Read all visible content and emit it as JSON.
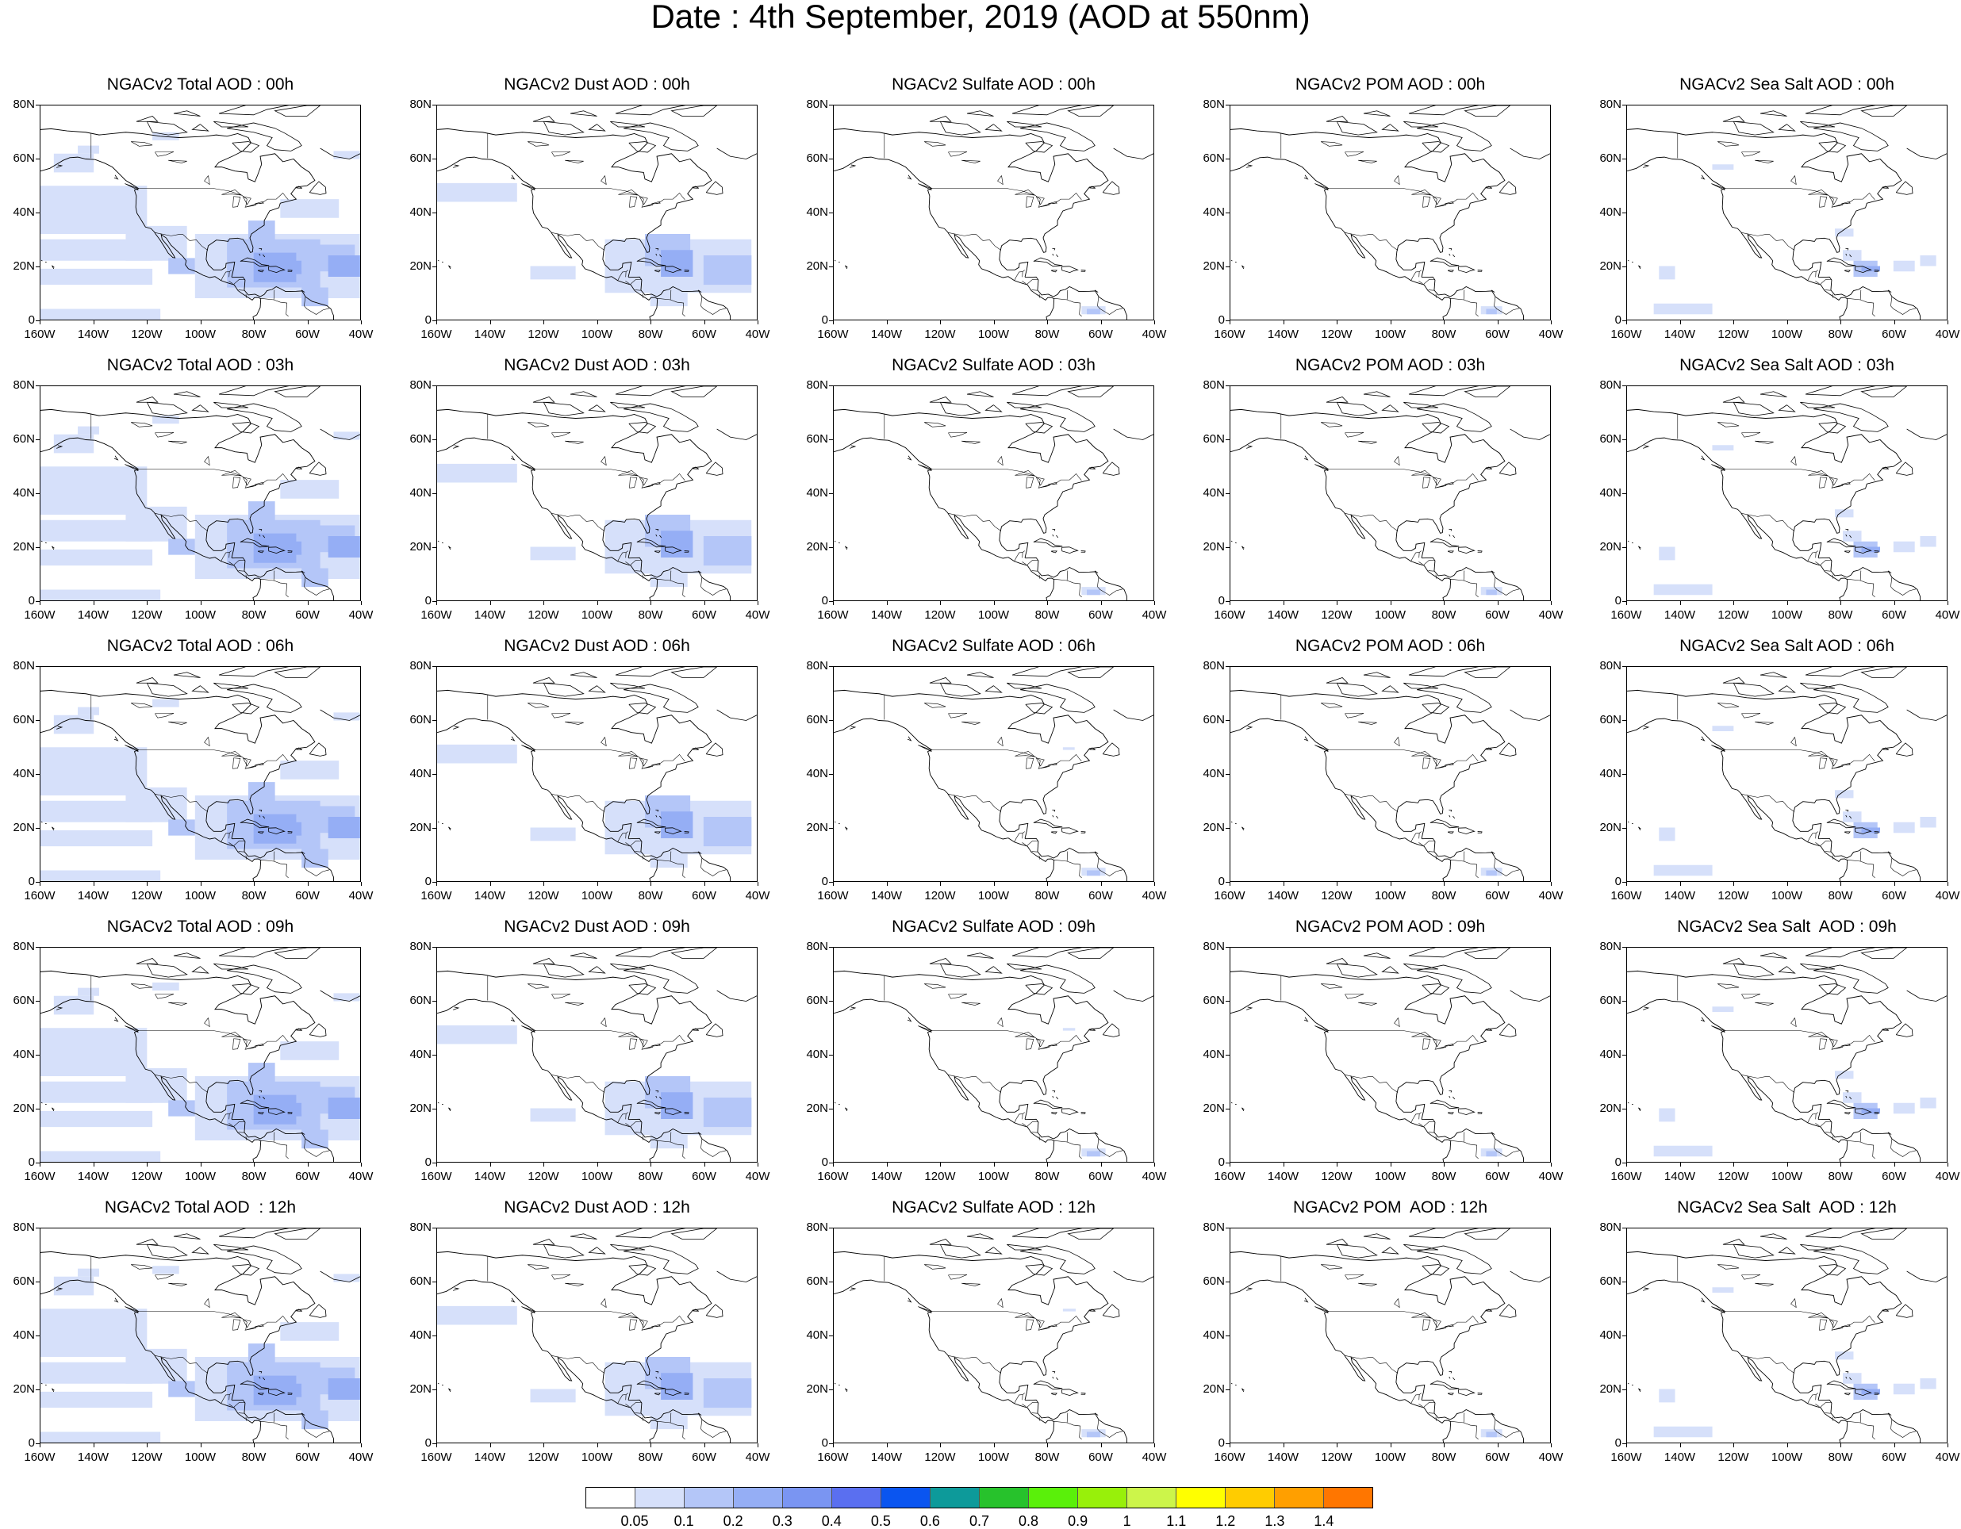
{
  "title": "Date : 4th September, 2019 (AOD at 550nm)",
  "panel_titles": [
    [
      "NGACv2 Total AOD : 00h",
      "NGACv2 Dust AOD : 00h",
      "NGACv2 Sulfate AOD : 00h",
      "NGACv2 POM AOD : 00h",
      "NGACv2 Sea Salt AOD : 00h"
    ],
    [
      "NGACv2 Total AOD : 03h",
      "NGACv2 Dust AOD : 03h",
      "NGACv2 Sulfate AOD : 03h",
      "NGACv2 POM AOD : 03h",
      "NGACv2 Sea Salt AOD : 03h"
    ],
    [
      "NGACv2 Total AOD : 06h",
      "NGACv2 Dust AOD : 06h",
      "NGACv2 Sulfate AOD : 06h",
      "NGACv2 POM AOD : 06h",
      "NGACv2 Sea Salt AOD : 06h"
    ],
    [
      "NGACv2 Total AOD : 09h",
      "NGACv2 Dust AOD : 09h",
      "NGACv2 Sulfate AOD : 09h",
      "NGACv2 POM AOD : 09h",
      "NGACv2 Sea Salt  AOD : 09h"
    ],
    [
      "NGACv2 Total AOD  : 12h",
      "NGACv2 Dust AOD : 12h",
      "NGACv2 Sulfate AOD : 12h",
      "NGACv2 POM  AOD : 12h",
      "NGACv2 Sea Salt  AOD : 12h"
    ]
  ],
  "y_ticks": [
    "0",
    "20N",
    "40N",
    "60N",
    "80N"
  ],
  "x_ticks": [
    "160W",
    "140W",
    "120W",
    "100W",
    "80W",
    "60W",
    "40W"
  ],
  "colorbar": {
    "labels": [
      "0.05",
      "0.1",
      "0.2",
      "0.3",
      "0.4",
      "0.5",
      "0.6",
      "0.7",
      "0.8",
      "0.9",
      "1",
      "1.1",
      "1.2",
      "1.3",
      "1.4"
    ],
    "colors": [
      "#ffffff",
      "#d6e0fa",
      "#b4c6f8",
      "#95aef5",
      "#7a95f2",
      "#5a6ff0",
      "#0a55f0",
      "#0d9a9a",
      "#27c22c",
      "#5af00a",
      "#98f00a",
      "#ccf54a",
      "#ffff00",
      "#ffcc00",
      "#ff9f00",
      "#ff7600",
      "#ff2a10"
    ]
  },
  "aod_fields": {
    "total": "widespread light-to-moderate AOD over eastern Pacific, Gulf of Mexico, Caribbean and western Atlantic",
    "dust": "moderate AOD over Caribbean and Gulf of Mexico, light over northeastern Pacific",
    "sulfate": "near zero, trace over northern South America",
    "pom": "near zero, trace over northern South America",
    "seasalt": "light AOD near Bahamas and patches in tropical Pacific and Atlantic"
  }
}
